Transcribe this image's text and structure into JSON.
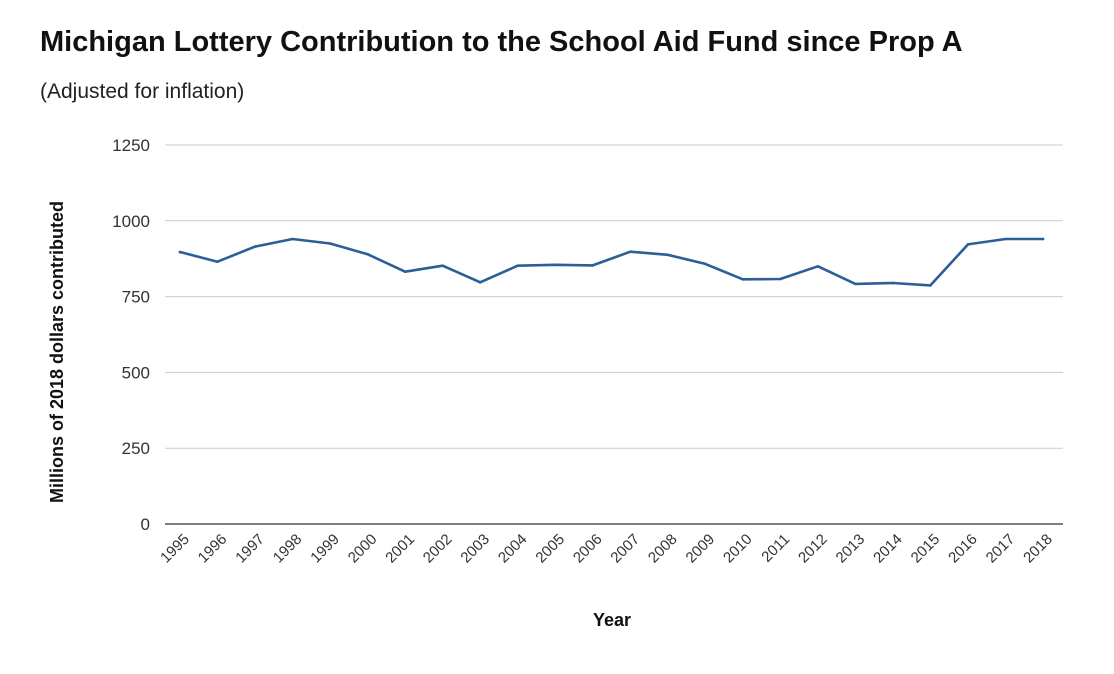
{
  "chart_data": {
    "type": "line",
    "title": "Michigan Lottery Contribution to the School Aid Fund since Prop A",
    "subtitle": "(Adjusted for inflation)",
    "xlabel": "Year",
    "ylabel": "Millions of 2018 dollars contributed",
    "ylim": [
      0,
      1250
    ],
    "yticks": [
      "0",
      "250",
      "500",
      "750",
      "1000",
      "1250"
    ],
    "grid": true,
    "legend": "none",
    "line_color": "#2c5f97",
    "categories": [
      "1995",
      "1996",
      "1997",
      "1998",
      "1999",
      "2000",
      "2001",
      "2002",
      "2003",
      "2004",
      "2005",
      "2006",
      "2007",
      "2008",
      "2009",
      "2010",
      "2011",
      "2012",
      "2013",
      "2014",
      "2015",
      "2016",
      "2017",
      "2018"
    ],
    "series": [
      {
        "values": [
          897,
          865,
          915,
          940,
          925,
          890,
          832,
          852,
          797,
          852,
          855,
          853,
          898,
          888,
          858,
          807,
          808,
          850,
          792,
          795,
          787,
          922,
          940,
          940
        ]
      }
    ]
  }
}
